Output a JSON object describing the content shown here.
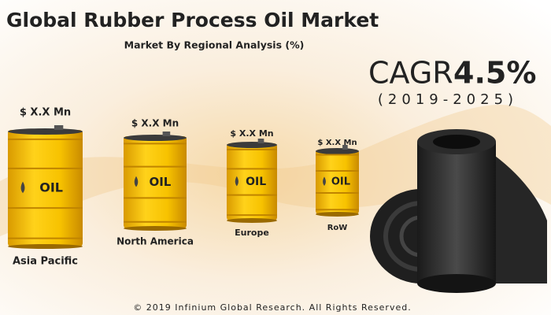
{
  "header": {
    "title": "Global Rubber Process Oil Market",
    "subtitle": "Market By Regional Analysis (%)"
  },
  "cagr": {
    "label": "CAGR",
    "value": "4.5%",
    "period": "(2019-2025)"
  },
  "barrels": [
    {
      "amount": "$ X.X Mn",
      "badge": "OIL",
      "region": "Asia Pacific"
    },
    {
      "amount": "$ X.X Mn",
      "badge": "OIL",
      "region": "North America"
    },
    {
      "amount": "$ X.X Mn",
      "badge": "OIL",
      "region": "Europe"
    },
    {
      "amount": "$ X.X Mn",
      "badge": "OIL",
      "region": "RoW"
    }
  ],
  "footer": "© 2019 Infinium Global Research. All Rights Reserved."
}
